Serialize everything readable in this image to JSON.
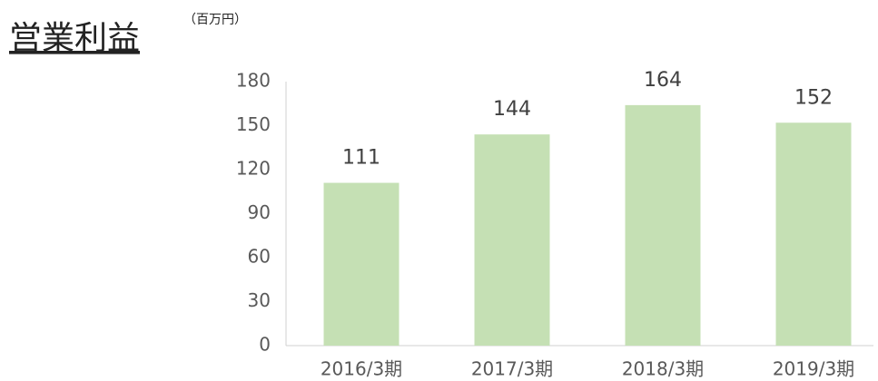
{
  "chart_data": {
    "type": "bar",
    "title": "営業利益",
    "unit": "（百万円）",
    "categories": [
      "2016/3期",
      "2017/3期",
      "2018/3期",
      "2019/3期"
    ],
    "values": [
      111,
      144,
      164,
      152
    ],
    "color": "#c5e0b4",
    "ylim": [
      0,
      180
    ],
    "yticks": [
      0,
      30,
      60,
      90,
      120,
      150,
      180
    ],
    "grid": false
  }
}
